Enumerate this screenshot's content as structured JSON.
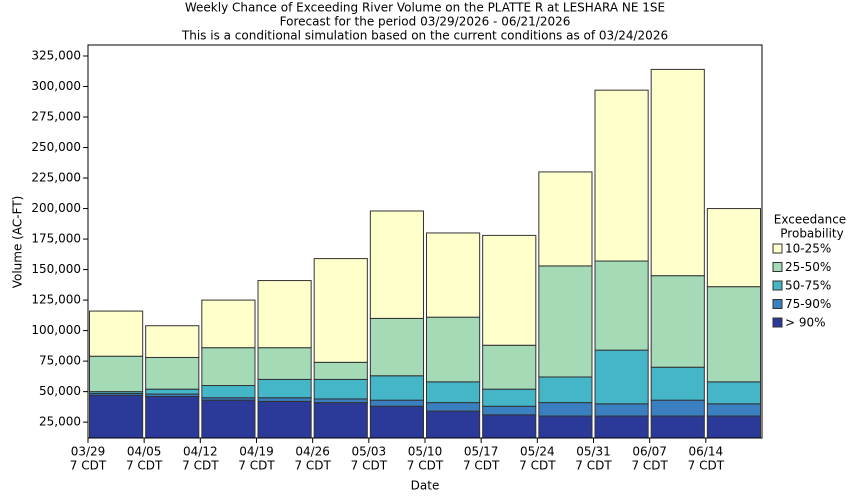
{
  "chart_data": {
    "type": "stacked_bar",
    "title": [
      "Weekly Chance of Exceeding River Volume on the PLATTE R at LESHARA NE 1SE",
      "Forecast for the period 03/29/2026 - 06/21/2026",
      "This is a conditional simulation based on the current conditions as of 03/24/2026"
    ],
    "x_label": "Date",
    "y_label": "Volume (AC-FT)",
    "categories": [
      "03/29",
      "04/05",
      "04/12",
      "04/19",
      "04/26",
      "05/03",
      "05/10",
      "05/17",
      "05/24",
      "05/31",
      "06/07",
      "06/14"
    ],
    "category_times": [
      "7 CDT",
      "7 CDT",
      "7 CDT",
      "7 CDT",
      "7 CDT",
      "7 CDT",
      "7 CDT",
      "7 CDT",
      "7 CDT",
      "7 CDT",
      "7 CDT",
      "7 CDT"
    ],
    "legend_title": [
      "Exceedance",
      "Probability"
    ],
    "legend": "right",
    "series": [
      {
        "name": "> 90%",
        "color": "#2b3a98",
        "values": [
          47000,
          46000,
          43000,
          42000,
          41000,
          38000,
          34000,
          31000,
          30000,
          30000,
          30000,
          30000
        ]
      },
      {
        "name": "75-90%",
        "color": "#3a80c0",
        "values": [
          1500,
          2000,
          2000,
          3000,
          3000,
          5000,
          7000,
          7000,
          11000,
          10000,
          13000,
          10000
        ]
      },
      {
        "name": "50-75%",
        "color": "#45b5c8",
        "values": [
          1500,
          4000,
          10000,
          15000,
          16000,
          20000,
          17000,
          14000,
          21000,
          44000,
          27000,
          18000
        ]
      },
      {
        "name": "25-50%",
        "color": "#a4dab6",
        "values": [
          29000,
          26000,
          31000,
          26000,
          14000,
          47000,
          53000,
          36000,
          91000,
          73000,
          75000,
          78000
        ]
      },
      {
        "name": "10-25%",
        "color": "#ffffcc",
        "values": [
          37000,
          26000,
          39000,
          55000,
          85000,
          88000,
          69000,
          90000,
          77000,
          140000,
          169000,
          64000
        ]
      }
    ],
    "ylim": [
      12000,
      334000
    ],
    "yticks": [
      {
        "value": 25000,
        "label": "25,000"
      },
      {
        "value": 50000,
        "label": "50,000"
      },
      {
        "value": 75000,
        "label": "75,000"
      },
      {
        "value": 100000,
        "label": "100,000"
      },
      {
        "value": 125000,
        "label": "125,000"
      },
      {
        "value": 150000,
        "label": "150,000"
      },
      {
        "value": 175000,
        "label": "175,000"
      },
      {
        "value": 200000,
        "label": "200,000"
      },
      {
        "value": 225000,
        "label": "225,000"
      },
      {
        "value": 250000,
        "label": "250,000"
      },
      {
        "value": 275000,
        "label": "275,000"
      },
      {
        "value": 300000,
        "label": "300,000"
      },
      {
        "value": 325000,
        "label": "325,000"
      }
    ]
  }
}
